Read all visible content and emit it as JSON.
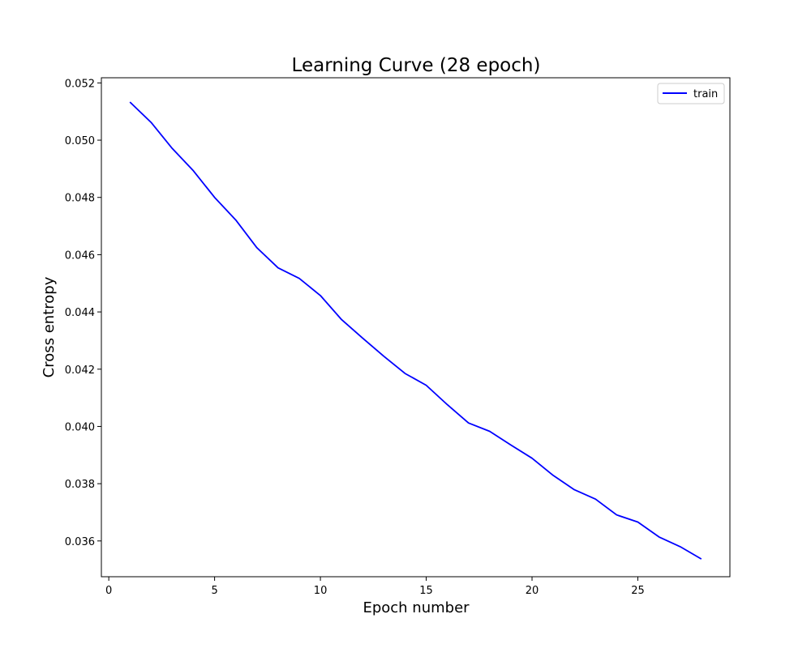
{
  "chart_data": {
    "type": "line",
    "title": "Learning Curve (28 epoch)",
    "xlabel": "Epoch number",
    "ylabel": "Cross entropy",
    "xlim": [
      -0.35,
      29.35
    ],
    "ylim": [
      0.03475,
      0.05218
    ],
    "xticks": [
      0,
      5,
      10,
      15,
      20,
      25
    ],
    "xtick_labels": [
      "0",
      "5",
      "10",
      "15",
      "20",
      "25"
    ],
    "yticks": [
      0.036,
      0.038,
      0.04,
      0.042,
      0.044,
      0.046,
      0.048,
      0.05,
      0.052
    ],
    "ytick_labels": [
      "0.036",
      "0.038",
      "0.040",
      "0.042",
      "0.044",
      "0.046",
      "0.048",
      "0.050",
      "0.052"
    ],
    "grid": false,
    "legend_position": "top-right",
    "series": [
      {
        "name": "train",
        "color": "#0000ff",
        "x": [
          1,
          2,
          3,
          4,
          5,
          6,
          7,
          8,
          9,
          10,
          11,
          12,
          13,
          14,
          15,
          16,
          17,
          18,
          19,
          20,
          21,
          22,
          23,
          24,
          25,
          26,
          27,
          28
        ],
        "y": [
          0.05133,
          0.05062,
          0.04971,
          0.04893,
          0.048,
          0.04721,
          0.04624,
          0.04554,
          0.04517,
          0.04457,
          0.04373,
          0.04308,
          0.04245,
          0.04185,
          0.04144,
          0.04076,
          0.04012,
          0.03983,
          0.03935,
          0.03889,
          0.03829,
          0.03779,
          0.03746,
          0.03691,
          0.03666,
          0.03614,
          0.0358,
          0.03537
        ]
      }
    ]
  }
}
